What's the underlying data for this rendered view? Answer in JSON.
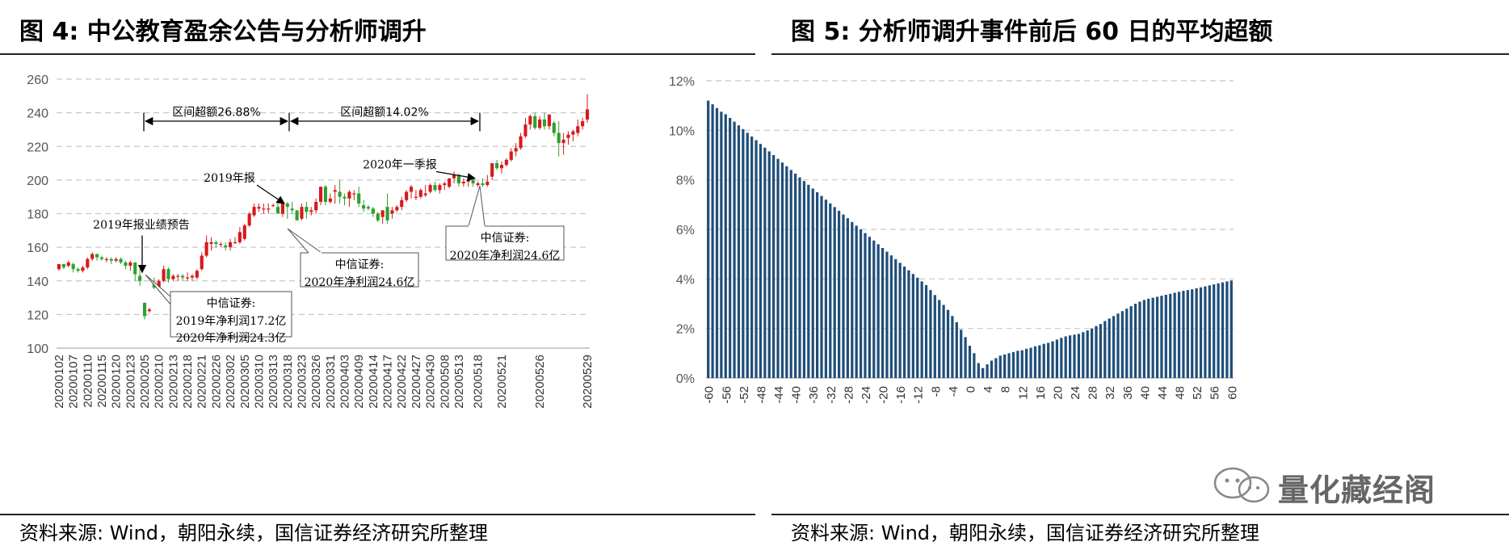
{
  "left": {
    "title": "图 4:  中公教育盈余公告与分析师调升",
    "source": "资料来源: Wind，朝阳永续，国信证券经济研究所整理"
  },
  "right": {
    "title": "图 5:  分析师调升事件前后 60 日的平均超额",
    "source": "资料来源: Wind，朝阳永续，国信证券经济研究所整理"
  },
  "watermark": {
    "text": "量化藏经阁"
  },
  "colors": {
    "up": "#d7191c",
    "down": "#2ca02c",
    "bar": "#1f4e79",
    "grid": "#c8c8c8"
  },
  "chart_data": [
    {
      "type": "candlestick",
      "ylim": [
        100,
        260
      ],
      "yticks": [
        100,
        120,
        140,
        160,
        180,
        200,
        220,
        240,
        260
      ],
      "x_tick_labels": [
        "20200102",
        "20200107",
        "20200110",
        "20200115",
        "20200120",
        "20200123",
        "20200205",
        "20200210",
        "20200213",
        "20200218",
        "20200221",
        "20200226",
        "20200302",
        "20200305",
        "20200310",
        "20200313",
        "20200318",
        "20200323",
        "20200326",
        "20200331",
        "20200403",
        "20200409",
        "20200414",
        "20200417",
        "20200422",
        "20200427",
        "20200430",
        "20200508",
        "20200513",
        "20200518",
        "20200521",
        "20200526",
        "20200529"
      ],
      "candles": [
        [
          147,
          150,
          146,
          150
        ],
        [
          150,
          150,
          147,
          148
        ],
        [
          149,
          152,
          148,
          151
        ],
        [
          150,
          151,
          145,
          147
        ],
        [
          147,
          148,
          145,
          146
        ],
        [
          146,
          149,
          145,
          148
        ],
        [
          148,
          154,
          147,
          153
        ],
        [
          153,
          157,
          152,
          156
        ],
        [
          156,
          156,
          152,
          154
        ],
        [
          154,
          155,
          152,
          153
        ],
        [
          153,
          154,
          151,
          153
        ],
        [
          153,
          154,
          150,
          152
        ],
        [
          152,
          154,
          151,
          153
        ],
        [
          153,
          154,
          150,
          151
        ],
        [
          151,
          152,
          147,
          149
        ],
        [
          149,
          152,
          146,
          151
        ],
        [
          151,
          151,
          140,
          144
        ],
        [
          143,
          147,
          137,
          140
        ],
        [
          127,
          127,
          117,
          119
        ],
        [
          122,
          124,
          121,
          123
        ],
        [
          139,
          142,
          135,
          136
        ],
        [
          136,
          141,
          134,
          140
        ],
        [
          140,
          149,
          139,
          147
        ],
        [
          147,
          148,
          139,
          141
        ],
        [
          141,
          144,
          140,
          143
        ],
        [
          143,
          144,
          140,
          143
        ],
        [
          143,
          144,
          140,
          142
        ],
        [
          142,
          145,
          140,
          142
        ],
        [
          142,
          144,
          140,
          143
        ],
        [
          142,
          147,
          141,
          146
        ],
        [
          147,
          157,
          146,
          155
        ],
        [
          155,
          167,
          154,
          163
        ],
        [
          162,
          166,
          158,
          163
        ],
        [
          163,
          164,
          160,
          162
        ],
        [
          162,
          163,
          160,
          162
        ],
        [
          161,
          163,
          158,
          160
        ],
        [
          160,
          165,
          158,
          163
        ],
        [
          163,
          166,
          162,
          163
        ],
        [
          163,
          172,
          162,
          169
        ],
        [
          165,
          174,
          164,
          173
        ],
        [
          173,
          181,
          172,
          180
        ],
        [
          179,
          186,
          178,
          184
        ],
        [
          183,
          186,
          181,
          184
        ],
        [
          183,
          186,
          180,
          183
        ],
        [
          183,
          186,
          180,
          183
        ],
        [
          185,
          186,
          184,
          185
        ],
        [
          184,
          186,
          180,
          180
        ],
        [
          180,
          186,
          178,
          186
        ],
        [
          186,
          187,
          177,
          184
        ],
        [
          183,
          187,
          180,
          182
        ],
        [
          182,
          182,
          176,
          176
        ],
        [
          177,
          186,
          176,
          184
        ],
        [
          184,
          187,
          177,
          181
        ],
        [
          181,
          184,
          179,
          182
        ],
        [
          182,
          189,
          180,
          187
        ],
        [
          187,
          196,
          185,
          196
        ],
        [
          196,
          197,
          185,
          187
        ],
        [
          187,
          192,
          186,
          189
        ],
        [
          193,
          197,
          186,
          194
        ],
        [
          193,
          200,
          186,
          190
        ],
        [
          190,
          192,
          185,
          189
        ],
        [
          189,
          194,
          184,
          193
        ],
        [
          192,
          194,
          188,
          192
        ],
        [
          192,
          196,
          184,
          186
        ],
        [
          185,
          188,
          181,
          183
        ],
        [
          184,
          185,
          182,
          183
        ],
        [
          183,
          184,
          178,
          180
        ],
        [
          180,
          181,
          175,
          176
        ],
        [
          178,
          182,
          174,
          182
        ],
        [
          184,
          192,
          174,
          176
        ],
        [
          180,
          184,
          177,
          182
        ],
        [
          182,
          185,
          181,
          184
        ],
        [
          184,
          190,
          182,
          188
        ],
        [
          188,
          194,
          187,
          193
        ],
        [
          193,
          197,
          189,
          196
        ],
        [
          190,
          194,
          188,
          190
        ],
        [
          190,
          195,
          189,
          194
        ],
        [
          191,
          197,
          190,
          192
        ],
        [
          193,
          198,
          192,
          197
        ],
        [
          197,
          199,
          193,
          194
        ],
        [
          194,
          198,
          192,
          197
        ],
        [
          197,
          199,
          194,
          198
        ],
        [
          196,
          201,
          195,
          201
        ],
        [
          201,
          205,
          198,
          203
        ],
        [
          203,
          204,
          196,
          198
        ],
        [
          198,
          201,
          196,
          199
        ],
        [
          199,
          203,
          196,
          200
        ],
        [
          200,
          202,
          196,
          198
        ],
        [
          197,
          199,
          196,
          198
        ],
        [
          198,
          201,
          196,
          197
        ],
        [
          197,
          203,
          196,
          199
        ],
        [
          202,
          210,
          200,
          210
        ],
        [
          210,
          212,
          206,
          207
        ],
        [
          207,
          211,
          204,
          209
        ],
        [
          209,
          213,
          208,
          212
        ],
        [
          212,
          219,
          211,
          217
        ],
        [
          217,
          222,
          214,
          219
        ],
        [
          219,
          228,
          218,
          226
        ],
        [
          226,
          237,
          225,
          233
        ],
        [
          233,
          239,
          230,
          238
        ],
        [
          238,
          240,
          230,
          231
        ],
        [
          231,
          238,
          230,
          236
        ],
        [
          236,
          240,
          230,
          232
        ],
        [
          232,
          239,
          230,
          239
        ],
        [
          234,
          235,
          226,
          228
        ],
        [
          228,
          235,
          214,
          222
        ],
        [
          222,
          228,
          215,
          224
        ],
        [
          225,
          229,
          221,
          227
        ],
        [
          227,
          230,
          223,
          229
        ],
        [
          228,
          236,
          226,
          232
        ],
        [
          232,
          237,
          230,
          235
        ],
        [
          236,
          251,
          234,
          242
        ]
      ],
      "annotations": [
        {
          "label": "2019年报业绩预告",
          "callout": null
        },
        {
          "label": "2019年报",
          "callout": null
        },
        {
          "label": "2020年一季报",
          "callout": null
        },
        {
          "label": "中信证券:",
          "lines": [
            "2019年净利润17.2亿",
            "2020年净利润24.3亿"
          ]
        },
        {
          "label": "中信证券:",
          "lines": [
            "2020年净利润24.6亿"
          ]
        },
        {
          "label": "中信证券:",
          "lines": [
            "2020年净利润24.6亿"
          ]
        }
      ],
      "ranges": [
        {
          "label": "区间超额26.88%"
        },
        {
          "label": "区间超额14.02%"
        }
      ]
    },
    {
      "type": "bar",
      "ylim": [
        0,
        12
      ],
      "yticks": [
        "0%",
        "2%",
        "4%",
        "6%",
        "8%",
        "10%",
        "12%"
      ],
      "x_tick_labels": [
        "-60",
        "-56",
        "-52",
        "-48",
        "-44",
        "-40",
        "-36",
        "-32",
        "-28",
        "-24",
        "-20",
        "-16",
        "-12",
        "-8",
        "-4",
        "0",
        "4",
        "8",
        "12",
        "16",
        "20",
        "24",
        "28",
        "32",
        "36",
        "40",
        "44",
        "48",
        "52",
        "56",
        "60"
      ],
      "x_start": -60,
      "values": [
        11.2,
        11.05,
        10.9,
        10.75,
        10.65,
        10.5,
        10.35,
        10.2,
        10.05,
        9.9,
        9.75,
        9.6,
        9.45,
        9.3,
        9.15,
        9.0,
        8.85,
        8.7,
        8.55,
        8.4,
        8.25,
        8.1,
        7.95,
        7.8,
        7.65,
        7.5,
        7.35,
        7.2,
        7.05,
        6.9,
        6.75,
        6.6,
        6.45,
        6.3,
        6.15,
        6.0,
        5.85,
        5.7,
        5.55,
        5.4,
        5.25,
        5.1,
        4.95,
        4.8,
        4.65,
        4.5,
        4.35,
        4.2,
        4.05,
        3.9,
        3.75,
        3.55,
        3.35,
        3.15,
        2.95,
        2.75,
        2.5,
        2.25,
        1.95,
        1.65,
        1.3,
        1.0,
        0.6,
        0.4,
        0.55,
        0.7,
        0.8,
        0.9,
        0.95,
        1.0,
        1.05,
        1.1,
        1.12,
        1.18,
        1.22,
        1.28,
        1.32,
        1.38,
        1.42,
        1.48,
        1.55,
        1.62,
        1.68,
        1.72,
        1.75,
        1.78,
        1.85,
        1.92,
        2.0,
        2.1,
        2.18,
        2.3,
        2.4,
        2.5,
        2.6,
        2.7,
        2.8,
        2.9,
        3.0,
        3.08,
        3.15,
        3.2,
        3.24,
        3.28,
        3.32,
        3.36,
        3.4,
        3.44,
        3.48,
        3.52,
        3.55,
        3.58,
        3.62,
        3.66,
        3.7,
        3.74,
        3.78,
        3.82,
        3.86,
        3.9,
        3.94
      ]
    }
  ]
}
